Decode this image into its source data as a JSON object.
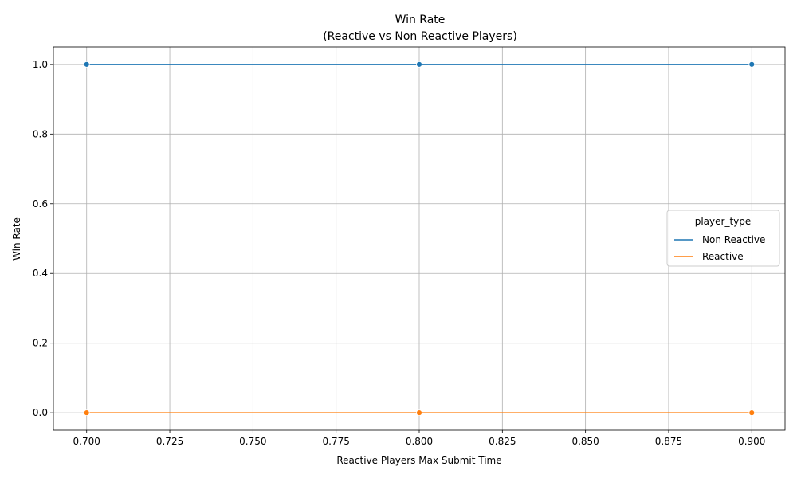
{
  "chart_data": {
    "type": "line",
    "title": "Win Rate",
    "subtitle": "(Reactive vs Non Reactive Players)",
    "xlabel": "Reactive Players Max Submit Time",
    "ylabel": "Win Rate",
    "xlim": [
      0.69,
      0.91
    ],
    "ylim": [
      -0.05,
      1.05
    ],
    "x_ticks": [
      "0.700",
      "0.725",
      "0.750",
      "0.775",
      "0.800",
      "0.825",
      "0.850",
      "0.875",
      "0.900"
    ],
    "y_ticks": [
      "0.0",
      "0.2",
      "0.4",
      "0.6",
      "0.8",
      "1.0"
    ],
    "grid": true,
    "legend": {
      "title": "player_type",
      "placement": "center-right"
    },
    "x": [
      0.7,
      0.8,
      0.9
    ],
    "series": [
      {
        "name": "Non Reactive",
        "color": "#1f77b4",
        "values": [
          1.0,
          1.0,
          1.0
        ]
      },
      {
        "name": "Reactive",
        "color": "#ff7f0e",
        "values": [
          0.0,
          0.0,
          0.0
        ]
      }
    ]
  }
}
